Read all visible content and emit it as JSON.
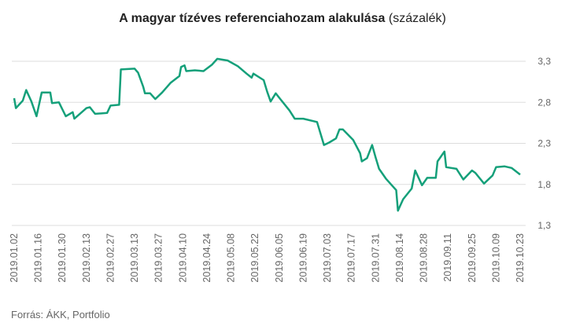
{
  "chart_data": {
    "type": "line",
    "title": "A magyar tízéves referenciahozam alakulása",
    "title_unit": "(százalék)",
    "source": "Forrás: ÁKK, Portfolio",
    "color": "#15a07a",
    "grid": true,
    "ylim": [
      1.3,
      3.3
    ],
    "yticks": [
      {
        "value": 1.3,
        "label": "1,3"
      },
      {
        "value": 1.8,
        "label": "1,8"
      },
      {
        "value": 2.3,
        "label": "2,3"
      },
      {
        "value": 2.8,
        "label": "2,8"
      },
      {
        "value": 3.3,
        "label": "3,3"
      }
    ],
    "xlim": [
      "2019.01.02",
      "2019.10.23"
    ],
    "xticks": [
      "2019.01.02",
      "2019.01.16",
      "2019.01.30",
      "2019.02.13",
      "2019.02.27",
      "2019.03.13",
      "2019.03.27",
      "2019.04.10",
      "2019.04.24",
      "2019.05.08",
      "2019.05.22",
      "2019.06.05",
      "2019.06.19",
      "2019.07.03",
      "2019.07.17",
      "2019.07.31",
      "2019.08.14",
      "2019.08.28",
      "2019.09.11",
      "2019.09.25",
      "2019.10.09",
      "2019.10.23"
    ],
    "x": [
      "2019.01.02",
      "2019.01.03",
      "2019.01.07",
      "2019.01.09",
      "2019.01.12",
      "2019.01.15",
      "2019.01.18",
      "2019.01.23",
      "2019.01.24",
      "2019.01.28",
      "2019.02.01",
      "2019.02.05",
      "2019.02.06",
      "2019.02.13",
      "2019.02.15",
      "2019.02.18",
      "2019.02.25",
      "2019.02.27",
      "2019.03.04",
      "2019.03.05",
      "2019.03.13",
      "2019.03.15",
      "2019.03.18",
      "2019.03.19",
      "2019.03.22",
      "2019.03.25",
      "2019.03.29",
      "2019.04.03",
      "2019.04.08",
      "2019.04.09",
      "2019.04.11",
      "2019.04.12",
      "2019.04.17",
      "2019.04.22",
      "2019.04.27",
      "2019.04.30",
      "2019.05.06",
      "2019.05.12",
      "2019.05.17",
      "2019.05.20",
      "2019.05.21",
      "2019.05.27",
      "2019.05.29",
      "2019.05.31",
      "2019.06.03",
      "2019.06.06",
      "2019.06.11",
      "2019.06.14",
      "2019.06.19",
      "2019.06.27",
      "2019.07.01",
      "2019.07.04",
      "2019.07.08",
      "2019.07.10",
      "2019.07.12",
      "2019.07.18",
      "2019.07.22",
      "2019.07.23",
      "2019.07.26",
      "2019.07.29",
      "2019.07.31",
      "2019.08.02",
      "2019.08.06",
      "2019.08.12",
      "2019.08.13",
      "2019.08.16",
      "2019.08.21",
      "2019.08.23",
      "2019.08.27",
      "2019.08.30",
      "2019.09.04",
      "2019.09.05",
      "2019.09.09",
      "2019.09.10",
      "2019.09.16",
      "2019.09.20",
      "2019.09.25",
      "2019.09.27",
      "2019.10.02",
      "2019.10.07",
      "2019.10.09",
      "2019.10.14",
      "2019.10.18",
      "2019.10.23"
    ],
    "values": [
      2.85,
      2.73,
      2.82,
      2.95,
      2.81,
      2.63,
      2.92,
      2.92,
      2.79,
      2.8,
      2.63,
      2.68,
      2.6,
      2.73,
      2.74,
      2.66,
      2.67,
      2.76,
      2.77,
      3.2,
      3.21,
      3.16,
      2.99,
      2.91,
      2.91,
      2.84,
      2.92,
      3.04,
      3.12,
      3.23,
      3.25,
      3.18,
      3.19,
      3.18,
      3.26,
      3.33,
      3.31,
      3.24,
      3.15,
      3.1,
      3.15,
      3.07,
      2.93,
      2.81,
      2.91,
      2.83,
      2.7,
      2.6,
      2.6,
      2.56,
      2.28,
      2.31,
      2.36,
      2.47,
      2.47,
      2.34,
      2.18,
      2.08,
      2.12,
      2.28,
      2.13,
      1.99,
      1.87,
      1.73,
      1.48,
      1.62,
      1.75,
      1.97,
      1.79,
      1.88,
      1.88,
      2.08,
      2.2,
      2.01,
      1.99,
      1.86,
      1.97,
      1.94,
      1.81,
      1.91,
      2.01,
      2.02,
      2.0,
      1.92
    ]
  }
}
